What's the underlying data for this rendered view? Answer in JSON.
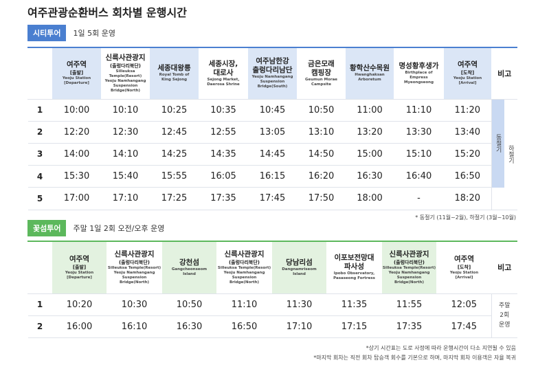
{
  "title": "여주관광순환버스 회차별 운행시간",
  "city_tour": {
    "badge": "시티투어",
    "subtitle": "1일 5회 운영",
    "headers": [
      {
        "ko": [
          "여주역"
        ],
        "sub": "[출발]",
        "en": [
          "Yeoju Station",
          "[Departure]"
        ]
      },
      {
        "ko": [
          "신륵사관광지"
        ],
        "sub": "(출렁다리북단)",
        "en": [
          "Silleuksa Temple(Resort)",
          "Yeoju Namhangang",
          "Suspension Bridge(North)"
        ]
      },
      {
        "ko": [
          "세종대왕릉"
        ],
        "en": [
          "Royal Tomb of",
          "King Sejong"
        ]
      },
      {
        "ko": [
          "세종시장,",
          "대로사"
        ],
        "en": [
          "Sejong Market,",
          "Daerosa Shrine"
        ]
      },
      {
        "ko": [
          "여주남한강",
          "출렁다리남단"
        ],
        "en": [
          "Yeoju Namhangang",
          "Suspension Bridge(South)"
        ]
      },
      {
        "ko": [
          "금은모래",
          "캠핑장"
        ],
        "en": [
          "Geumun Morae",
          "Campsite"
        ]
      },
      {
        "ko": [
          "황학산수목원"
        ],
        "en": [
          "Hwanghaksan",
          "Arboretum"
        ]
      },
      {
        "ko": [
          "명성황후생가"
        ],
        "en": [
          "Birthplace of",
          "Empress",
          "Myeongseong"
        ]
      },
      {
        "ko": [
          "여주역"
        ],
        "sub": "[도착]",
        "en": [
          "Yeoju Station",
          "[Arrival]"
        ]
      }
    ],
    "remarks_header": "비고",
    "rows": [
      {
        "no": 1,
        "times": [
          "10:00",
          "10:10",
          "10:25",
          "10:35",
          "10:45",
          "10:50",
          "11:00",
          "11:10",
          "11:20"
        ]
      },
      {
        "no": 2,
        "times": [
          "12:20",
          "12:30",
          "12:45",
          "12:55",
          "13:05",
          "13:10",
          "13:20",
          "13:30",
          "13:40"
        ]
      },
      {
        "no": 3,
        "times": [
          "14:00",
          "14:10",
          "14:25",
          "14:35",
          "14:45",
          "14:50",
          "15:00",
          "15:10",
          "15:20"
        ]
      },
      {
        "no": 4,
        "times": [
          "15:30",
          "15:40",
          "15:55",
          "16:05",
          "16:15",
          "16:20",
          "16:30",
          "16:40",
          "16:50"
        ]
      },
      {
        "no": 5,
        "times": [
          "17:00",
          "17:10",
          "17:25",
          "17:35",
          "17:45",
          "17:50",
          "18:00",
          "-",
          "18:20"
        ]
      }
    ],
    "remarks": [
      "동절기",
      "하절기"
    ],
    "footnote": "* 동절기 (11월~2월), 하절기 (3월~10월)"
  },
  "flower_tour": {
    "badge": "꽃섬투어",
    "subtitle": "주말 1일 2회 오전/오후 운영",
    "headers": [
      {
        "ko": [
          "여주역"
        ],
        "sub": "[출발]",
        "en": [
          "Yeoju Station",
          "[Departure]"
        ]
      },
      {
        "ko": [
          "신륵사관광지"
        ],
        "sub": "(출렁다리북단)",
        "en": [
          "Silleuksa Temple(Resort)",
          "Yeoju Namhangang",
          "Suspension Bridge(North)"
        ]
      },
      {
        "ko": [
          "강천섬"
        ],
        "en": [
          "Gangcheonseom",
          "Island"
        ]
      },
      {
        "ko": [
          "신륵사관광지"
        ],
        "sub": "(출렁다리북단)",
        "en": [
          "Silleuksa Temple(Resort)",
          "Yeoju Namhangang",
          "Suspension Bridge(North)"
        ]
      },
      {
        "ko": [
          "당남리섬"
        ],
        "en": [
          "Dangnamriseom",
          "Island"
        ]
      },
      {
        "ko": [
          "이포보전망대",
          "파사성"
        ],
        "en": [
          "Ipobo Observatory,",
          "Pasaseong Fortress"
        ]
      },
      {
        "ko": [
          "신륵사관광지"
        ],
        "sub": "(출렁다리북단)",
        "en": [
          "Silleuksa Temple(Resort)",
          "Yeoju Namhangang",
          "Suspension Bridge(North)"
        ]
      },
      {
        "ko": [
          "여주역"
        ],
        "sub": "[도착]",
        "en": [
          "Yeoju Station",
          "[Arrival]"
        ]
      }
    ],
    "remarks_header": "비고",
    "rows": [
      {
        "no": 1,
        "times": [
          "10:20",
          "10:30",
          "10:50",
          "11:10",
          "11:30",
          "11:35",
          "11:55",
          "12:05"
        ]
      },
      {
        "no": 2,
        "times": [
          "16:00",
          "16:10",
          "16:30",
          "16:50",
          "17:10",
          "17:15",
          "17:35",
          "17:45"
        ]
      }
    ],
    "remarks": [
      "주말 2회 운영"
    ]
  },
  "footnotes": [
    "*상기 시간표는 도로 사정에 따라 운행시간이 다소 지연될 수 있음",
    "*마지막 회차는 직전 회차 탑승객 회수를 기본으로 하며, 마지막 회차 이용객은 자율 복귀"
  ]
}
